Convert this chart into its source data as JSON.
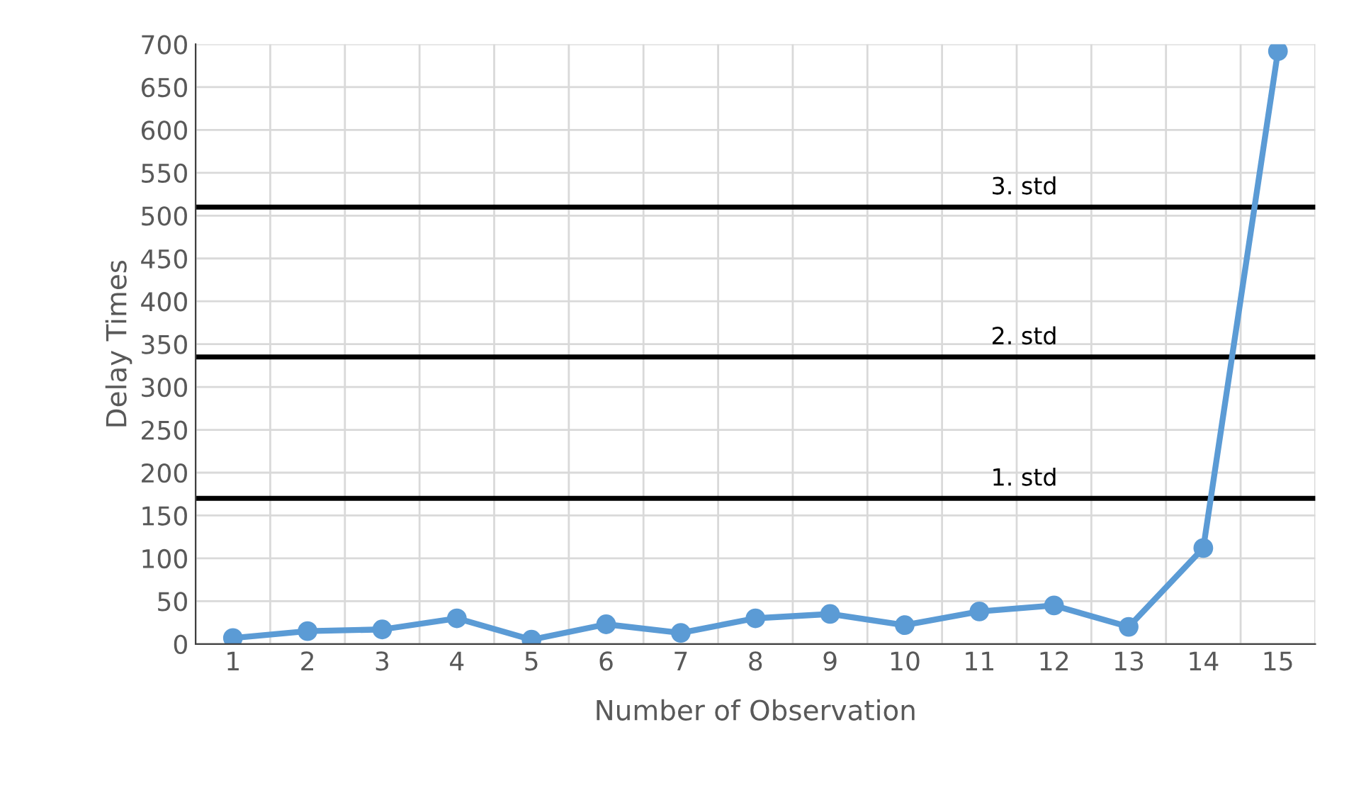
{
  "chart_data": {
    "type": "line",
    "xlabel": "Number of Observation",
    "ylabel": "Delay Times",
    "categories": [
      "1",
      "2",
      "3",
      "4",
      "5",
      "6",
      "7",
      "8",
      "9",
      "10",
      "11",
      "12",
      "13",
      "14",
      "15"
    ],
    "series": [
      {
        "color": "#5b9bd5",
        "values": [
          7,
          15,
          17,
          30,
          5,
          23,
          13,
          30,
          35,
          22,
          38,
          45,
          20,
          112,
          692
        ]
      }
    ],
    "ylim": [
      0,
      700
    ],
    "yticks": [
      0,
      50,
      100,
      150,
      200,
      250,
      300,
      350,
      400,
      450,
      500,
      550,
      600,
      650,
      700
    ],
    "ref_lines": [
      {
        "axis": "y",
        "value": 510,
        "label": "3. std",
        "color": "#000000"
      },
      {
        "axis": "y",
        "value": 335,
        "label": "2. std",
        "color": "#000000"
      },
      {
        "axis": "y",
        "value": 170,
        "label": "1. std",
        "color": "#000000"
      }
    ],
    "grid": true,
    "marker": "circle",
    "line_style": "solid"
  }
}
